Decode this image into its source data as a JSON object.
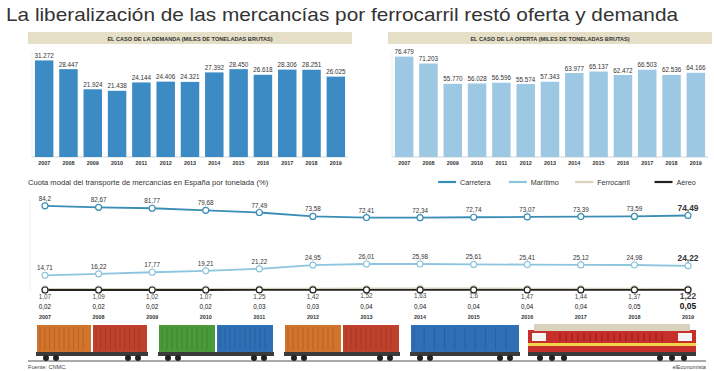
{
  "title": "La liberalización de las mercancías por ferrocarril restó oferta y demanda",
  "source": "Fuente: CNMC.",
  "credit": "elEconomista",
  "chart_data": [
    {
      "type": "bar",
      "title": "EL CASO DE LA DEMANDA (MILES DE TONELADAS BRUTAS)",
      "categories": [
        "2007",
        "2008",
        "2009",
        "2010",
        "2011",
        "2012",
        "2013",
        "2014",
        "2015",
        "2016",
        "2017",
        "2018",
        "2019"
      ],
      "values": [
        31272,
        28447,
        21924,
        21438,
        24144,
        24406,
        24321,
        27392,
        28450,
        26618,
        28306,
        28251,
        26025
      ],
      "value_labels": [
        "31.272",
        "28.447",
        "21.924",
        "21.438",
        "24.144",
        "24.406",
        "24.321",
        "27.392",
        "28.450",
        "26.618",
        "28.306",
        "28.251",
        "26.025"
      ],
      "color": "#3d8bc4",
      "ylim": [
        0,
        34000
      ],
      "data_labels": true,
      "tick_labels": "x",
      "grid": false
    },
    {
      "type": "bar",
      "title": "EL CASO DE LA OFERTA (MILES DE TONELADAS BRUTAS)",
      "categories": [
        "2007",
        "2008",
        "2009",
        "2010",
        "2011",
        "2012",
        "2013",
        "2014",
        "2015",
        "2016",
        "2017",
        "2018",
        "2019"
      ],
      "values": [
        76479,
        71203,
        55770,
        56028,
        56596,
        55574,
        57343,
        63977,
        65137,
        62472,
        66503,
        62536,
        64166
      ],
      "value_labels": [
        "76.479",
        "71.203",
        "55.770",
        "56.028",
        "56.596",
        "55.574",
        "57.343",
        "63.977",
        "65.137",
        "62.472",
        "66.503",
        "62.536",
        "64.166"
      ],
      "color": "#9cc8e3",
      "ylim": [
        0,
        80000
      ],
      "data_labels": true,
      "tick_labels": "x",
      "grid": false
    },
    {
      "type": "line",
      "title": "Cuota modal del transporte de mercancías en España por tonelada (%)",
      "categories": [
        "2007",
        "2008",
        "2009",
        "2010",
        "2011",
        "2012",
        "2013",
        "2014",
        "2015",
        "2016",
        "2017",
        "2018",
        "2019"
      ],
      "series": [
        {
          "name": "Carretera",
          "color": "#3a8db5",
          "marker": "circle",
          "values": [
            84.2,
            82.67,
            81.77,
            79.68,
            77.49,
            73.58,
            72.41,
            72.34,
            72.74,
            73.07,
            73.39,
            73.59,
            74.49
          ],
          "value_labels": [
            "84,2",
            "82,67",
            "81,77",
            "79,68",
            "77,49",
            "73,58",
            "72,41",
            "72,34",
            "72,74",
            "73,07",
            "73,39",
            "73,59",
            "74,49"
          ]
        },
        {
          "name": "Marítimo",
          "color": "#8ec5de",
          "marker": "circle",
          "values": [
            14.71,
            16.22,
            17.77,
            19.21,
            21.22,
            24.95,
            26.01,
            25.98,
            25.61,
            25.41,
            25.12,
            24.98,
            24.22
          ],
          "value_labels": [
            "14,71",
            "16,22",
            "17,77",
            "19,21",
            "21,22",
            "24,95",
            "26,01",
            "25,98",
            "25,61",
            "25,41",
            "25,12",
            "24,98",
            "24,22"
          ]
        },
        {
          "name": "Ferrocarril",
          "color": "#d8d1bc",
          "marker": "circle",
          "values": [
            1.07,
            1.09,
            1.02,
            1.07,
            1.25,
            1.42,
            1.52,
            1.63,
            1.6,
            1.47,
            1.44,
            1.37,
            1.22
          ],
          "value_labels": [
            "1,07",
            "1,09",
            "1,02",
            "1,07",
            "1,25",
            "1,42",
            "1,52",
            "1,63",
            "1,6",
            "1,47",
            "1,44",
            "1,37",
            "1,22"
          ]
        },
        {
          "name": "Aéreo",
          "color": "#222222",
          "marker": "circle",
          "values": [
            0.02,
            0.02,
            0.02,
            0.02,
            0.03,
            0.03,
            0.04,
            0.04,
            0.04,
            0.04,
            0.04,
            0.05,
            0.05
          ],
          "value_labels": [
            "0,02",
            "0,02",
            "0,02",
            "0,02",
            "0,03",
            "0,03",
            "0,04",
            "0,04",
            "0,04",
            "0,04",
            "0,04",
            "0,05",
            "0,05"
          ]
        }
      ],
      "ylim": [
        0,
        90
      ],
      "legend": "top-right",
      "data_labels": true,
      "tick_labels": "x",
      "grid": false
    }
  ]
}
